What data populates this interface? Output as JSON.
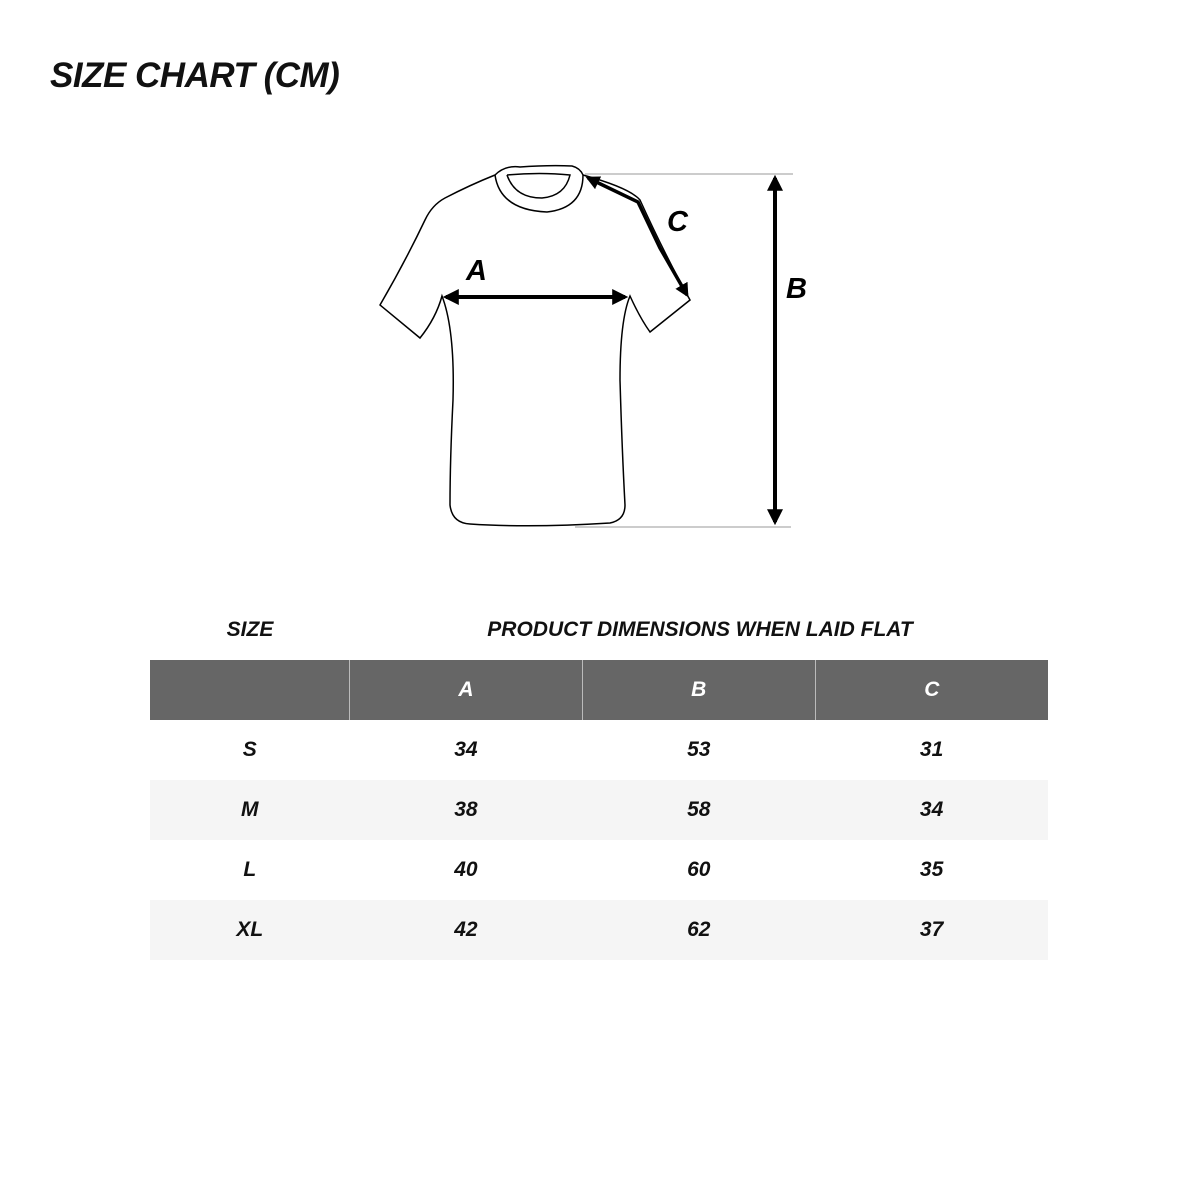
{
  "title": "SIZE CHART (CM)",
  "diagram": {
    "labels": {
      "a": "A",
      "b": "B",
      "c": "C"
    }
  },
  "table": {
    "size_label": "SIZE",
    "dimensions_label": "PRODUCT DIMENSIONS WHEN LAID FLAT",
    "columns": [
      "",
      "A",
      "B",
      "C"
    ],
    "rows": [
      [
        "S",
        "34",
        "53",
        "31"
      ],
      [
        "M",
        "38",
        "58",
        "34"
      ],
      [
        "L",
        "40",
        "60",
        "35"
      ],
      [
        "XL",
        "42",
        "62",
        "37"
      ]
    ]
  },
  "colors": {
    "header_bg": "#666666",
    "alt_row_bg": "#f5f5f5"
  }
}
